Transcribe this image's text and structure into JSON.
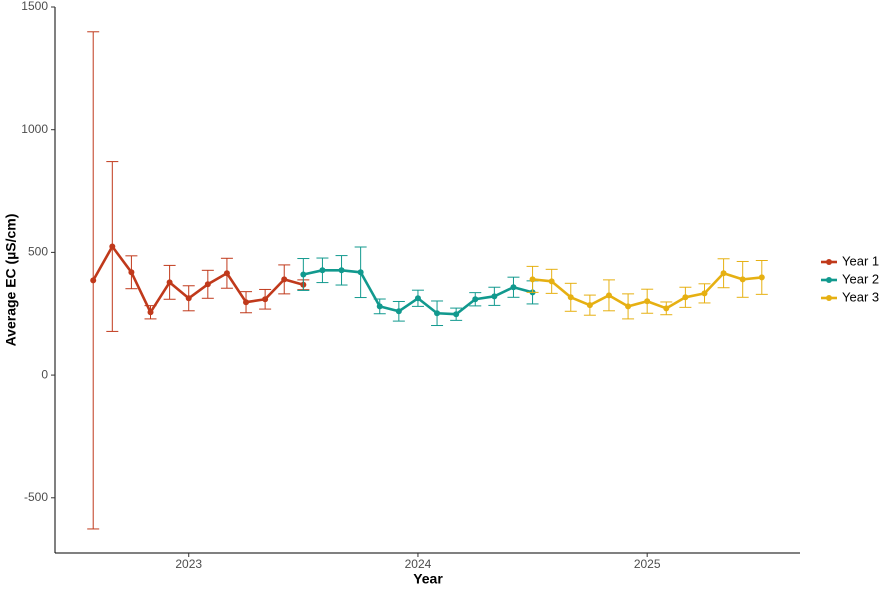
{
  "chart_data": {
    "type": "line",
    "x_label": "Year",
    "y_label": "Average EC (µS/cm)",
    "xlim": [
      "2022-06",
      "2025-09"
    ],
    "xticks": [
      {
        "value": "2023-01",
        "label": "2023"
      },
      {
        "value": "2024-01",
        "label": "2024"
      },
      {
        "value": "2025-01",
        "label": "2025"
      }
    ],
    "ylim": [
      -725,
      1500
    ],
    "yticks": [
      -500,
      0,
      500,
      1000,
      1500
    ],
    "grid": false,
    "legend": "right",
    "series": [
      {
        "name": "Year 1",
        "color": "#c0391b",
        "x": [
          "2022-08",
          "2022-09",
          "2022-10",
          "2022-11",
          "2022-12",
          "2023-01",
          "2023-02",
          "2023-03",
          "2023-04",
          "2023-05",
          "2023-06",
          "2023-07"
        ],
        "values": [
          386,
          524,
          419,
          256,
          378,
          313,
          370,
          415,
          297,
          309,
          390,
          368
        ],
        "errors": [
          1013,
          346,
          67,
          27,
          69,
          51,
          57,
          61,
          43,
          40,
          59,
          20
        ]
      },
      {
        "name": "Year 2",
        "color": "#11998e",
        "x": [
          "2023-07",
          "2023-08",
          "2023-09",
          "2023-10",
          "2023-11",
          "2023-12",
          "2024-01",
          "2024-02",
          "2024-03",
          "2024-04",
          "2024-05",
          "2024-06",
          "2024-07"
        ],
        "values": [
          410,
          427,
          427,
          419,
          280,
          260,
          313,
          252,
          248,
          309,
          321,
          358,
          337
        ],
        "errors": [
          65,
          50,
          60,
          103,
          30,
          40,
          33,
          50,
          25,
          27,
          37,
          41,
          47
        ]
      },
      {
        "name": "Year 3",
        "color": "#e6b012",
        "x": [
          "2024-07",
          "2024-08",
          "2024-09",
          "2024-10",
          "2024-11",
          "2024-12",
          "2025-01",
          "2025-02",
          "2025-03",
          "2025-04",
          "2025-05",
          "2025-06",
          "2025-07"
        ],
        "values": [
          390,
          382,
          317,
          285,
          325,
          280,
          301,
          272,
          317,
          333,
          415,
          390,
          398
        ],
        "errors": [
          53,
          49,
          57,
          41,
          63,
          51,
          49,
          26,
          41,
          39,
          59,
          73,
          69
        ]
      }
    ]
  }
}
